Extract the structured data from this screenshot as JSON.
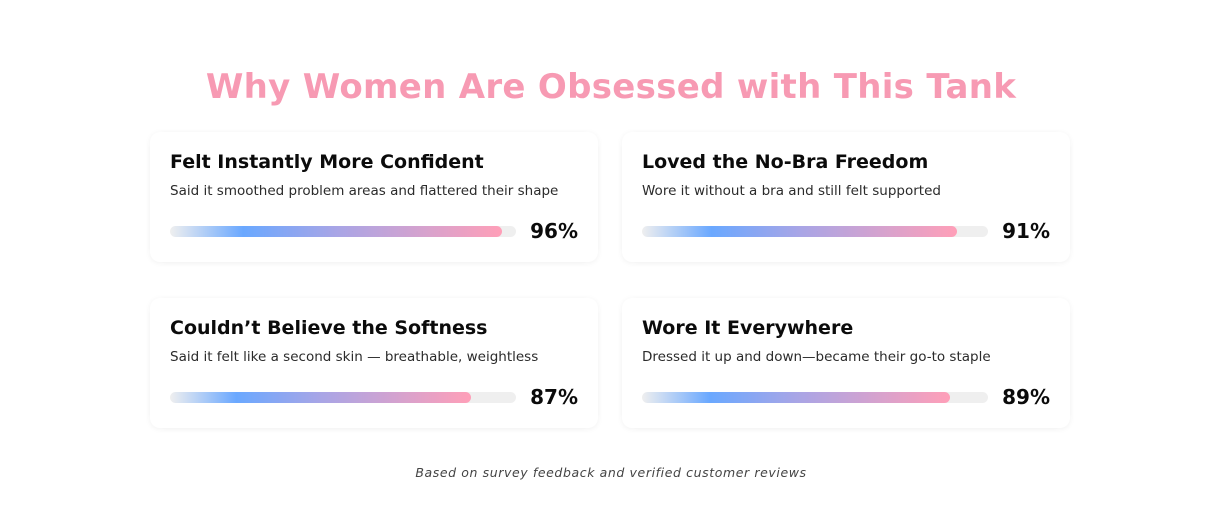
{
  "heading": "Why Women Are Obsessed with This Tank",
  "stats": [
    {
      "title": "Felt Instantly More Confident",
      "description": "Said it smoothed problem areas and flattered their shape",
      "percent_label": "96%",
      "value": 96
    },
    {
      "title": "Loved the No-Bra Freedom",
      "description": "Wore it without a bra and still felt supported",
      "percent_label": "91%",
      "value": 91
    },
    {
      "title": "Couldn’t Believe the Softness",
      "description": "Said it felt like a second skin — breathable, weightless",
      "percent_label": "87%",
      "value": 87
    },
    {
      "title": "Wore It Everywhere",
      "description": "Dressed it up and down—became their go-to staple",
      "percent_label": "89%",
      "value": 89
    }
  ],
  "footnote": "Based on survey feedback and verified customer reviews",
  "colors": {
    "heading": "#f79ab3",
    "bar_start": "#6aa8ff",
    "bar_mid": "#a8a5e6",
    "bar_end": "#ff9fb8",
    "track": "#efefef"
  }
}
